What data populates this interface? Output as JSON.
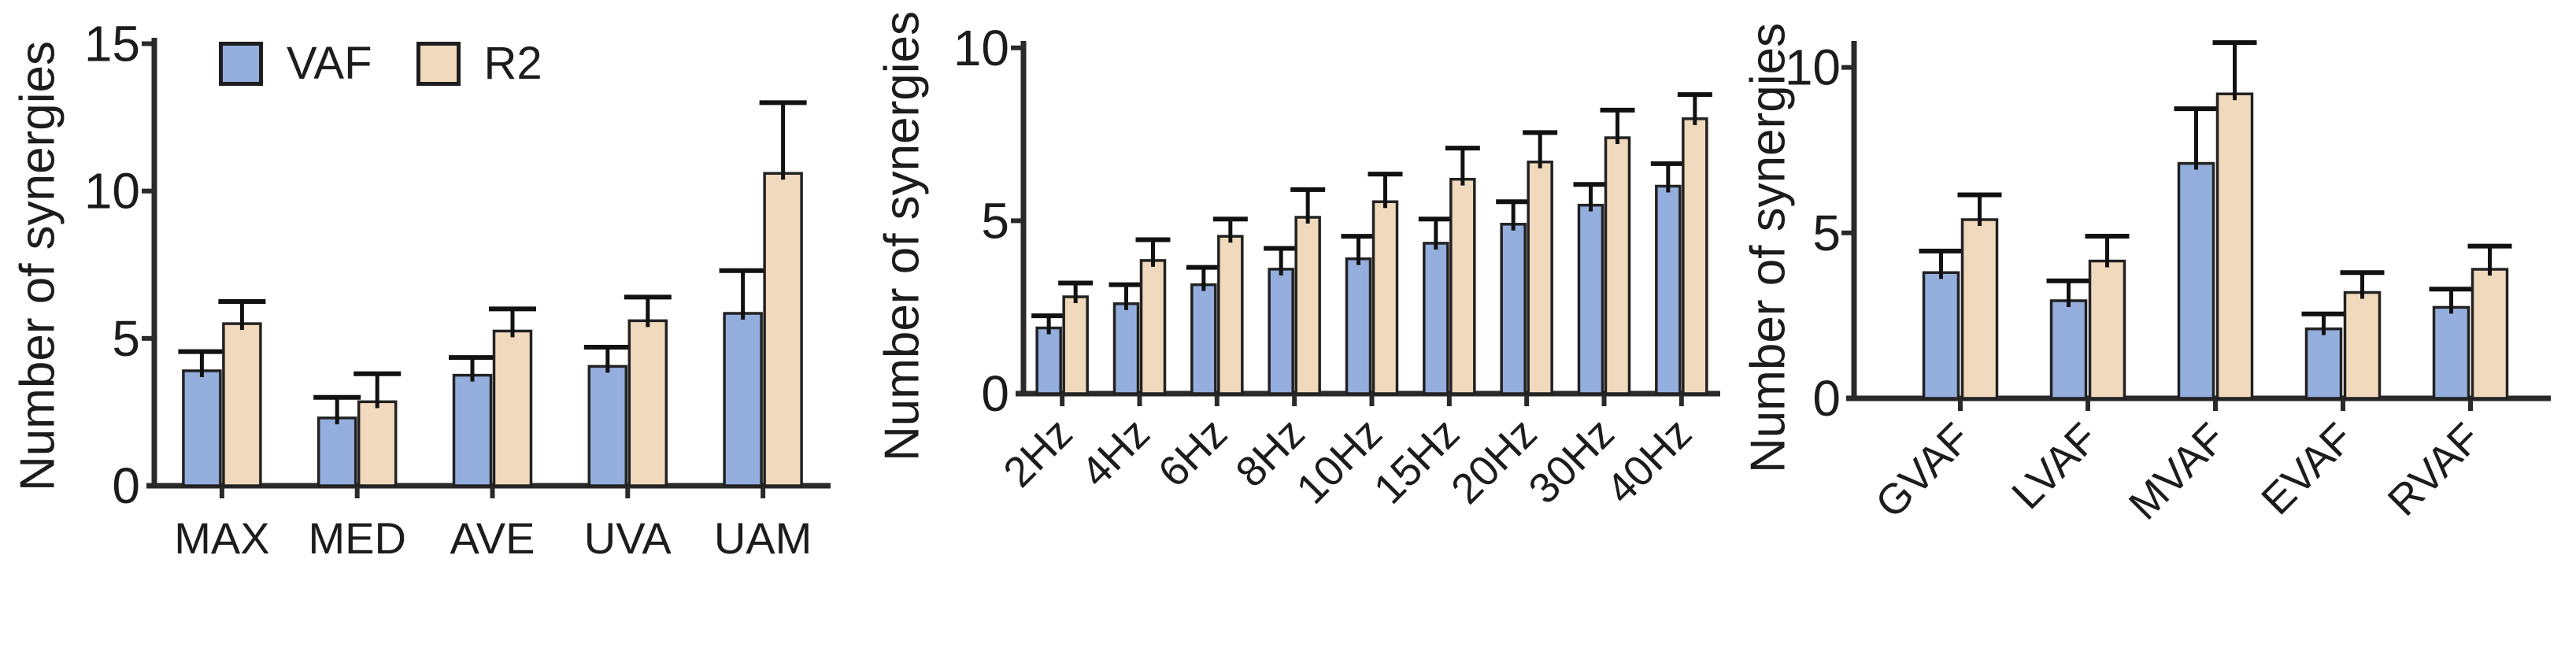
{
  "figure": {
    "background": "#ffffff",
    "text_color": "#1c1c1c",
    "axis_color": "#2a2a2a",
    "bar_border_color": "#222222",
    "error_bar_color": "#111111"
  },
  "legend": {
    "position": "top-left-of-first-panel",
    "entries": [
      {
        "label": "VAF",
        "color": "#94aede"
      },
      {
        "label": "R2",
        "color": "#f0d9bc"
      }
    ]
  },
  "chart_data": [
    {
      "type": "bar",
      "title": "",
      "ylabel": "Number of synergies",
      "xlabel": "",
      "categories": [
        "MAX",
        "MED",
        "AVE",
        "UVA",
        "UAM"
      ],
      "series": [
        {
          "name": "VAF",
          "color": "#94aede",
          "values": [
            3.9,
            2.3,
            3.75,
            4.05,
            5.85
          ],
          "errors_up": [
            0.65,
            0.7,
            0.6,
            0.65,
            1.45
          ]
        },
        {
          "name": "R2",
          "color": "#f0d9bc",
          "values": [
            5.5,
            2.85,
            5.25,
            5.6,
            10.6
          ],
          "errors_up": [
            0.75,
            0.95,
            0.75,
            0.8,
            2.4
          ]
        }
      ],
      "ylim": [
        0,
        15.2
      ],
      "yticks": [
        0,
        5,
        10,
        15
      ],
      "x_label_rotation": 0,
      "grid": false,
      "legend_shown": true
    },
    {
      "type": "bar",
      "title": "",
      "ylabel": "Number of synergies",
      "xlabel": "",
      "categories": [
        "2Hz",
        "4Hz",
        "6Hz",
        "8Hz",
        "10Hz",
        "15Hz",
        "20Hz",
        "30Hz",
        "40Hz"
      ],
      "series": [
        {
          "name": "VAF",
          "color": "#94aede",
          "values": [
            1.9,
            2.6,
            3.15,
            3.6,
            3.9,
            4.35,
            4.9,
            5.45,
            6.0
          ],
          "errors_up": [
            0.35,
            0.55,
            0.5,
            0.6,
            0.65,
            0.7,
            0.65,
            0.6,
            0.65
          ]
        },
        {
          "name": "R2",
          "color": "#f0d9bc",
          "values": [
            2.8,
            3.85,
            4.55,
            5.1,
            5.55,
            6.2,
            6.7,
            7.4,
            7.95
          ],
          "errors_up": [
            0.4,
            0.6,
            0.5,
            0.8,
            0.8,
            0.9,
            0.85,
            0.8,
            0.7
          ]
        }
      ],
      "ylim": [
        0,
        10.2
      ],
      "yticks": [
        0,
        5,
        10
      ],
      "x_label_rotation": -45,
      "grid": false,
      "legend_shown": false
    },
    {
      "type": "bar",
      "title": "",
      "ylabel": "Number of synergies",
      "xlabel": "",
      "categories": [
        "GVAF",
        "LVAF",
        "MVAF",
        "EVAF",
        "RVAF"
      ],
      "series": [
        {
          "name": "VAF",
          "color": "#94aede",
          "values": [
            3.8,
            2.95,
            7.1,
            2.1,
            2.75
          ],
          "errors_up": [
            0.65,
            0.6,
            1.65,
            0.45,
            0.55
          ]
        },
        {
          "name": "R2",
          "color": "#f0d9bc",
          "values": [
            5.4,
            4.15,
            9.2,
            3.2,
            3.9
          ],
          "errors_up": [
            0.75,
            0.75,
            1.55,
            0.6,
            0.7
          ]
        }
      ],
      "ylim": [
        0,
        10.8
      ],
      "yticks": [
        0,
        5,
        10
      ],
      "x_label_rotation": -45,
      "grid": false,
      "legend_shown": false
    }
  ]
}
